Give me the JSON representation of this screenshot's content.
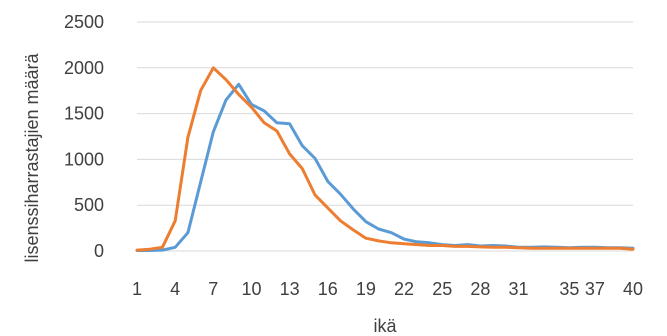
{
  "chart_data": {
    "type": "line",
    "title": "",
    "xlabel": "ikä",
    "ylabel": "lisenssiharrastajien määrä",
    "ylim": [
      0,
      2500
    ],
    "yticks": [
      0,
      500,
      1000,
      1500,
      2000,
      2500
    ],
    "x": [
      1,
      2,
      3,
      4,
      5,
      6,
      7,
      8,
      9,
      10,
      11,
      12,
      13,
      14,
      15,
      16,
      17,
      18,
      19,
      20,
      21,
      22,
      23,
      24,
      25,
      26,
      27,
      28,
      29,
      30,
      31,
      32,
      33,
      34,
      35,
      36,
      37,
      38,
      39,
      40
    ],
    "xtick_labels": [
      "1",
      "4",
      "7",
      "10",
      "13",
      "16",
      "19",
      "22",
      "25",
      "28",
      "31",
      "35",
      "37",
      "40"
    ],
    "xtick_positions": [
      1,
      4,
      7,
      10,
      13,
      16,
      19,
      22,
      25,
      28,
      31,
      35,
      37,
      40
    ],
    "grid": true,
    "legend": "none",
    "series": [
      {
        "color": "#5b9bd5",
        "values": [
          5,
          5,
          10,
          40,
          200,
          750,
          1300,
          1650,
          1820,
          1600,
          1530,
          1400,
          1390,
          1150,
          1010,
          760,
          620,
          460,
          320,
          240,
          200,
          130,
          100,
          90,
          70,
          60,
          70,
          55,
          60,
          55,
          40,
          40,
          45,
          40,
          35,
          40,
          40,
          35,
          35,
          30
        ]
      },
      {
        "color": "#ed7d31",
        "values": [
          10,
          20,
          40,
          330,
          1240,
          1750,
          2000,
          1870,
          1710,
          1570,
          1400,
          1310,
          1060,
          900,
          610,
          470,
          330,
          230,
          140,
          110,
          90,
          80,
          70,
          60,
          60,
          50,
          50,
          45,
          40,
          40,
          35,
          30,
          30,
          30,
          30,
          30,
          30,
          30,
          30,
          20
        ]
      }
    ]
  }
}
